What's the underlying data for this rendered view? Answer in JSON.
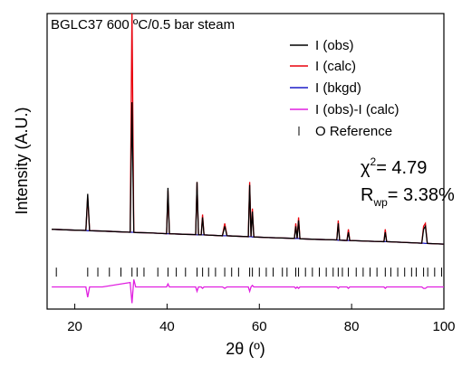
{
  "chart_data": {
    "type": "line",
    "title": "BGLC37 600 ºC/0.5 bar steam",
    "x_label": "2θ (º)",
    "y_label": "Intensity (A.U.)",
    "xlim": [
      14,
      100
    ],
    "xticks": [
      20,
      40,
      60,
      80,
      100
    ],
    "ylim": [
      0,
      100
    ],
    "x": [
      15,
      20,
      22.4,
      22.8,
      23.2,
      26,
      32.0,
      32.4,
      32.8,
      33.2,
      36,
      39.9,
      40.2,
      40.5,
      44,
      46.2,
      46.5,
      46.8,
      47.4,
      47.7,
      48.0,
      52,
      52.5,
      53,
      57.6,
      57.9,
      58.2,
      58.5,
      58.8,
      62,
      67.6,
      67.9,
      68.2,
      68.5,
      68.8,
      72,
      76.8,
      77.1,
      77.4,
      79,
      79.3,
      79.6,
      85,
      87,
      87.3,
      87.6,
      95.2,
      95.6,
      96.0,
      96.4,
      100
    ],
    "series": [
      {
        "name": "I (obs)",
        "color": "#000000",
        "values": [
          27.0,
          26.7,
          26.6,
          39,
          26.5,
          26.4,
          26.0,
          70,
          26.0,
          25.9,
          25.8,
          25.5,
          41,
          25.5,
          25.3,
          25.2,
          43,
          25.1,
          25.1,
          31,
          25.1,
          24.8,
          28,
          24.8,
          24.5,
          42,
          24.5,
          33,
          24.4,
          24.2,
          23.9,
          28,
          23.9,
          30,
          23.8,
          23.6,
          23.4,
          29,
          23.3,
          23.2,
          26,
          23.2,
          22.9,
          22.8,
          26,
          22.8,
          22.3,
          27,
          28,
          22.2,
          22.0
        ]
      },
      {
        "name": "I (calc)",
        "color": "#e8000b",
        "values": [
          27.0,
          26.7,
          26.6,
          38,
          26.5,
          26.4,
          26.0,
          102,
          26.0,
          25.9,
          25.8,
          25.5,
          40,
          25.5,
          25.3,
          25.2,
          43,
          25.1,
          25.1,
          32,
          25.1,
          24.8,
          29,
          24.8,
          24.5,
          43,
          24.5,
          34,
          24.4,
          24.2,
          23.9,
          29,
          23.9,
          31,
          23.8,
          23.6,
          23.4,
          30,
          23.3,
          23.2,
          27,
          23.2,
          22.9,
          22.8,
          27,
          22.8,
          22.3,
          28,
          29,
          22.2,
          22.0
        ]
      },
      {
        "name": "I (bkgd)",
        "color": "#1c1cc8",
        "values": [
          27.0,
          26.7,
          26.6,
          26.5,
          26.5,
          26.4,
          26.0,
          26.0,
          26.0,
          25.9,
          25.8,
          25.5,
          25.5,
          25.5,
          25.3,
          25.2,
          25.1,
          25.1,
          25.1,
          25.1,
          25.1,
          24.8,
          24.8,
          24.8,
          24.5,
          24.5,
          24.5,
          24.4,
          24.4,
          24.2,
          23.9,
          23.9,
          23.9,
          23.9,
          23.8,
          23.6,
          23.4,
          23.3,
          23.3,
          23.2,
          23.2,
          23.2,
          22.9,
          22.8,
          22.8,
          22.8,
          22.3,
          22.3,
          22.2,
          22.2,
          22.0
        ]
      },
      {
        "name": "I (obs)-I (calc)",
        "color": "#e020e0",
        "values": [
          7.5,
          7.5,
          7.5,
          4,
          7.5,
          7.5,
          9,
          2,
          10,
          7.5,
          7.5,
          7.5,
          8.5,
          7.5,
          7.5,
          7.5,
          6,
          7.5,
          7.5,
          7,
          7.5,
          7.5,
          7,
          7.5,
          7.5,
          6,
          7.5,
          8,
          7.5,
          7.5,
          7.5,
          7,
          7.5,
          7,
          7.5,
          7.5,
          7.5,
          7,
          7.5,
          7.5,
          7,
          7.5,
          7.5,
          7.5,
          7,
          7.5,
          7.5,
          7,
          7,
          7.5,
          7.5
        ]
      }
    ],
    "reference": {
      "name": "O Reference",
      "color": "#000000",
      "y": 12.5,
      "x": [
        16,
        22.8,
        25,
        27.5,
        30,
        32.4,
        33.5,
        35,
        38,
        40.2,
        42,
        44,
        46.5,
        47.7,
        49,
        50.5,
        52.5,
        54,
        55.5,
        57.9,
        58.5,
        60,
        61.5,
        63,
        65,
        66,
        67.9,
        68.5,
        70,
        71.5,
        73,
        74.5,
        76,
        77.1,
        78,
        79.3,
        81,
        82.5,
        84,
        85.5,
        87.3,
        88.5,
        90,
        91.5,
        93,
        94,
        95.6,
        96.5,
        98,
        99.5
      ]
    },
    "annotations": [
      [
        "χ",
        "2",
        "= 4.79"
      ],
      [
        "R",
        "wp",
        "= 3.38%"
      ]
    ]
  }
}
